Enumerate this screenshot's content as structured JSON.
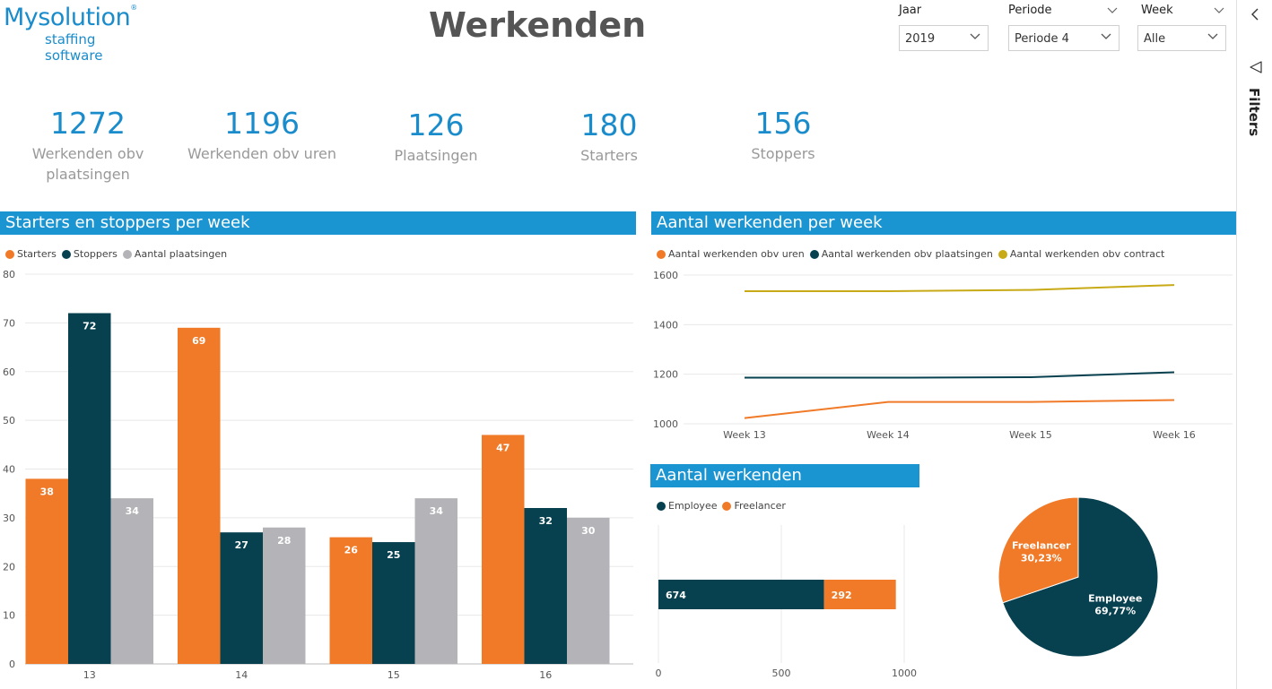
{
  "logo": {
    "name": "Mysolution",
    "registered": "®",
    "subtitle": "staffing software"
  },
  "page": {
    "title": "Werkenden"
  },
  "slicers": [
    {
      "label": "Jaar",
      "value": "2019"
    },
    {
      "label": "Periode",
      "value": "Periode 4"
    },
    {
      "label": "Week",
      "value": "Alle"
    }
  ],
  "filters_pane": {
    "label": "Filters"
  },
  "kpis": [
    {
      "value": "1272",
      "label": "Werkenden obv plaatsingen"
    },
    {
      "value": "1196",
      "label": "Werkenden obv uren"
    },
    {
      "value": "126",
      "label": "Plaatsingen"
    },
    {
      "value": "180",
      "label": "Starters"
    },
    {
      "value": "156",
      "label": "Stoppers"
    }
  ],
  "colors": {
    "orange": "#f07a28",
    "teal": "#07404f",
    "gray": "#b4b4b8",
    "yellow": "#c8aa16",
    "accent": "#1b94d2"
  },
  "sections": {
    "starters": "Starters en stoppers per week",
    "weekly": "Aantal werkenden per week",
    "total": "Aantal werkenden"
  },
  "chart_data": [
    {
      "type": "bar",
      "title": "Starters en stoppers per week",
      "categories": [
        "13",
        "14",
        "15",
        "16"
      ],
      "series": [
        {
          "name": "Starters",
          "color": "#f07a28",
          "values": [
            38,
            69,
            26,
            47
          ]
        },
        {
          "name": "Stoppers",
          "color": "#07404f",
          "values": [
            72,
            27,
            25,
            32
          ]
        },
        {
          "name": "Aantal plaatsingen",
          "color": "#b4b4b8",
          "values": [
            34,
            28,
            34,
            30
          ]
        }
      ],
      "ylim": [
        0,
        80
      ],
      "yticks": [
        0,
        10,
        20,
        30,
        40,
        50,
        60,
        70,
        80
      ]
    },
    {
      "type": "line",
      "title": "Aantal werkenden per week",
      "categories": [
        "Week 13",
        "Week 14",
        "Week 15",
        "Week 16"
      ],
      "series": [
        {
          "name": "Aantal werkenden obv uren",
          "color": "#f07a28",
          "values": [
            1023,
            1088,
            1088,
            1096
          ]
        },
        {
          "name": "Aantal werkenden obv plaatsingen",
          "color": "#07404f",
          "values": [
            1186,
            1186,
            1188,
            1208
          ]
        },
        {
          "name": "Aantal werkenden obv contract",
          "color": "#c8aa16",
          "values": [
            1535,
            1535,
            1540,
            1560
          ]
        }
      ],
      "ylim": [
        1000,
        1600
      ],
      "yticks": [
        1000,
        1200,
        1400,
        1600
      ]
    },
    {
      "type": "bar",
      "orientation": "horizontal-stacked",
      "title": "Aantal werkenden",
      "series": [
        {
          "name": "Employee",
          "color": "#07404f",
          "value": 674,
          "label": "674"
        },
        {
          "name": "Freelancer",
          "color": "#f07a28",
          "value": 292,
          "label": "292"
        }
      ],
      "xlim": [
        0,
        1000
      ],
      "xticks": [
        0,
        500,
        1000
      ]
    },
    {
      "type": "pie",
      "title": "Aantal werkenden",
      "slices": [
        {
          "name": "Employee",
          "color": "#07404f",
          "value": 69.77,
          "label": "69,77%"
        },
        {
          "name": "Freelancer",
          "color": "#f07a28",
          "value": 30.23,
          "label": "30,23%"
        }
      ]
    }
  ]
}
